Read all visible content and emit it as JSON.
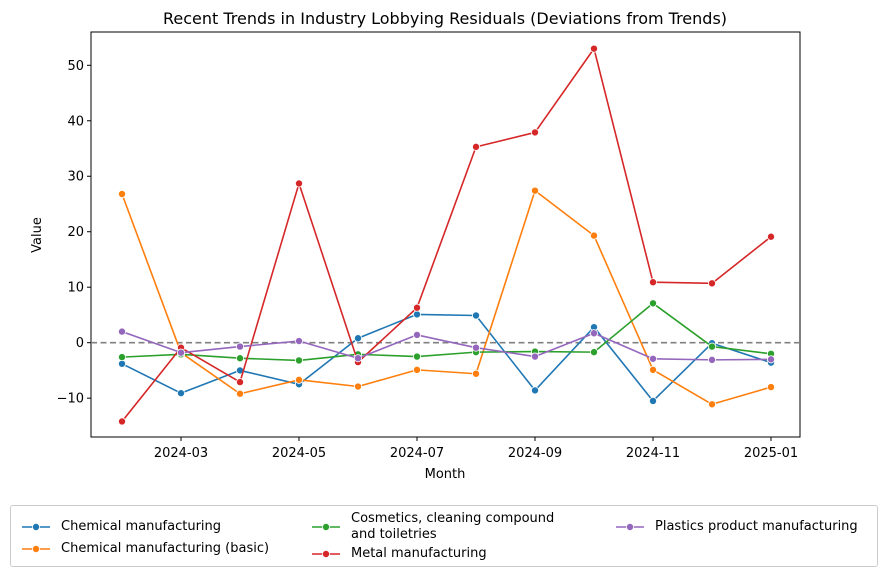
{
  "chart_data": {
    "type": "line",
    "title": "Recent Trends in Industry Lobbying Residuals (Deviations from Trends)",
    "xlabel": "Month",
    "ylabel": "Value",
    "ylim": [
      -17,
      56
    ],
    "yticks": [
      -10,
      0,
      10,
      20,
      30,
      40,
      50
    ],
    "xtick_labels": [
      "2024-03",
      "2024-05",
      "2024-07",
      "2024-09",
      "2024-11",
      "2025-01"
    ],
    "x": [
      "2024-02",
      "2024-03",
      "2024-04",
      "2024-05",
      "2024-06",
      "2024-07",
      "2024-08",
      "2024-09",
      "2024-10",
      "2024-11",
      "2024-12",
      "2025-01"
    ],
    "reference_line": 0,
    "legend_position": "bottom",
    "series": [
      {
        "name": "Chemical manufacturing",
        "color": "#1f77b4",
        "values": [
          -3.8,
          -9.1,
          -5.0,
          -7.5,
          0.8,
          5.1,
          4.9,
          -8.6,
          2.8,
          -10.5,
          -0.1,
          -3.6
        ]
      },
      {
        "name": "Chemical manufacturing (basic)",
        "color": "#ff7f0e",
        "values": [
          26.8,
          -1.8,
          -9.2,
          -6.7,
          -7.9,
          -4.9,
          -5.6,
          27.4,
          19.3,
          -4.9,
          -11.1,
          -8.0
        ]
      },
      {
        "name": "Cosmetics, cleaning compound and toiletries",
        "color": "#2ca02c",
        "values": [
          -2.6,
          -2.1,
          -2.8,
          -3.2,
          -2.1,
          -2.5,
          -1.7,
          -1.6,
          -1.7,
          7.1,
          -0.7,
          -2.0
        ]
      },
      {
        "name": "Metal manufacturing",
        "color": "#d62728",
        "values": [
          -14.2,
          -0.9,
          -7.1,
          28.7,
          -3.5,
          6.3,
          35.3,
          37.9,
          53.0,
          10.9,
          10.7,
          19.1
        ]
      },
      {
        "name": "Plastics product manufacturing",
        "color": "#9467bd",
        "values": [
          2.0,
          -1.8,
          -0.7,
          0.3,
          -2.8,
          1.4,
          -0.9,
          -2.5,
          1.7,
          -2.9,
          -3.1,
          -3.0
        ]
      }
    ]
  }
}
